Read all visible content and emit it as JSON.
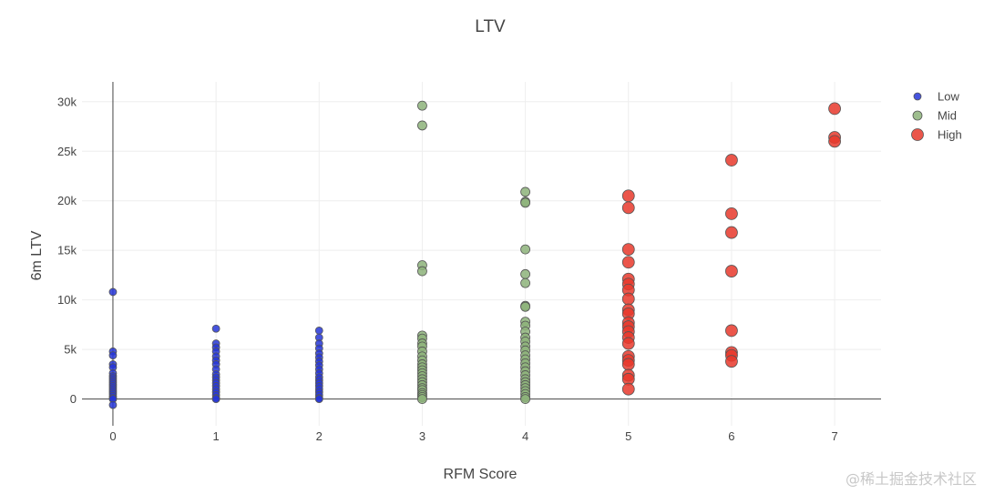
{
  "chart_data": {
    "type": "scatter",
    "title": "LTV",
    "xlabel": "RFM Score",
    "ylabel": "6m LTV",
    "xlim": [
      -0.3,
      7.45
    ],
    "ylim": [
      -2700,
      32000
    ],
    "xticks": [
      0,
      1,
      2,
      3,
      4,
      5,
      6,
      7
    ],
    "xticklabels": [
      "0",
      "1",
      "2",
      "3",
      "4",
      "5",
      "6",
      "7"
    ],
    "yticks": [
      0,
      5000,
      10000,
      15000,
      20000,
      25000,
      30000
    ],
    "yticklabels": [
      "0",
      "5k",
      "10k",
      "15k",
      "20k",
      "25k",
      "30k"
    ],
    "grid": true,
    "legend_position": "top-right",
    "series": [
      {
        "name": "Low",
        "color": "#2636d8",
        "marker_size": 8,
        "points": [
          [
            0,
            10800
          ],
          [
            0,
            4800
          ],
          [
            0,
            4400
          ],
          [
            0,
            3500
          ],
          [
            0,
            3200
          ],
          [
            0,
            2600
          ],
          [
            0,
            2300
          ],
          [
            0,
            2100
          ],
          [
            0,
            1900
          ],
          [
            0,
            1700
          ],
          [
            0,
            1500
          ],
          [
            0,
            1300
          ],
          [
            0,
            1100
          ],
          [
            0,
            900
          ],
          [
            0,
            700
          ],
          [
            0,
            500
          ],
          [
            0,
            300
          ],
          [
            0,
            100
          ],
          [
            0,
            0
          ],
          [
            0,
            -600
          ],
          [
            1,
            7100
          ],
          [
            1,
            5600
          ],
          [
            1,
            5200
          ],
          [
            1,
            4800
          ],
          [
            1,
            4300
          ],
          [
            1,
            3900
          ],
          [
            1,
            3500
          ],
          [
            1,
            3000
          ],
          [
            1,
            2500
          ],
          [
            1,
            2200
          ],
          [
            1,
            1900
          ],
          [
            1,
            1600
          ],
          [
            1,
            1300
          ],
          [
            1,
            1000
          ],
          [
            1,
            700
          ],
          [
            1,
            400
          ],
          [
            1,
            100
          ],
          [
            1,
            0
          ],
          [
            2,
            6900
          ],
          [
            2,
            6200
          ],
          [
            2,
            5600
          ],
          [
            2,
            5100
          ],
          [
            2,
            4600
          ],
          [
            2,
            4200
          ],
          [
            2,
            3800
          ],
          [
            2,
            3400
          ],
          [
            2,
            3000
          ],
          [
            2,
            2600
          ],
          [
            2,
            2200
          ],
          [
            2,
            1900
          ],
          [
            2,
            1600
          ],
          [
            2,
            1300
          ],
          [
            2,
            1000
          ],
          [
            2,
            700
          ],
          [
            2,
            400
          ],
          [
            2,
            100
          ],
          [
            2,
            0
          ]
        ]
      },
      {
        "name": "Mid",
        "color": "#8db37a",
        "marker_size": 10,
        "points": [
          [
            3,
            29600
          ],
          [
            3,
            27600
          ],
          [
            3,
            13500
          ],
          [
            3,
            12900
          ],
          [
            3,
            6400
          ],
          [
            3,
            6100
          ],
          [
            3,
            5600
          ],
          [
            3,
            5300
          ],
          [
            3,
            4800
          ],
          [
            3,
            4300
          ],
          [
            3,
            3900
          ],
          [
            3,
            3500
          ],
          [
            3,
            3200
          ],
          [
            3,
            2900
          ],
          [
            3,
            2600
          ],
          [
            3,
            2300
          ],
          [
            3,
            2000
          ],
          [
            3,
            1700
          ],
          [
            3,
            1400
          ],
          [
            3,
            1100
          ],
          [
            3,
            900
          ],
          [
            3,
            600
          ],
          [
            3,
            400
          ],
          [
            3,
            200
          ],
          [
            3,
            0
          ],
          [
            4,
            20900
          ],
          [
            4,
            19900
          ],
          [
            4,
            19800
          ],
          [
            4,
            15100
          ],
          [
            4,
            12600
          ],
          [
            4,
            11700
          ],
          [
            4,
            9400
          ],
          [
            4,
            9300
          ],
          [
            4,
            7800
          ],
          [
            4,
            7400
          ],
          [
            4,
            6800
          ],
          [
            4,
            6200
          ],
          [
            4,
            5800
          ],
          [
            4,
            5300
          ],
          [
            4,
            4900
          ],
          [
            4,
            4400
          ],
          [
            4,
            4000
          ],
          [
            4,
            3600
          ],
          [
            4,
            3200
          ],
          [
            4,
            2800
          ],
          [
            4,
            2400
          ],
          [
            4,
            2000
          ],
          [
            4,
            1700
          ],
          [
            4,
            1400
          ],
          [
            4,
            1100
          ],
          [
            4,
            800
          ],
          [
            4,
            500
          ],
          [
            4,
            200
          ],
          [
            4,
            0
          ]
        ]
      },
      {
        "name": "High",
        "color": "#e8382b",
        "marker_size": 13,
        "points": [
          [
            5,
            20500
          ],
          [
            5,
            19300
          ],
          [
            5,
            15100
          ],
          [
            5,
            13800
          ],
          [
            5,
            12100
          ],
          [
            5,
            11600
          ],
          [
            5,
            11000
          ],
          [
            5,
            10100
          ],
          [
            5,
            9000
          ],
          [
            5,
            8600
          ],
          [
            5,
            7700
          ],
          [
            5,
            7300
          ],
          [
            5,
            6800
          ],
          [
            5,
            6200
          ],
          [
            5,
            5600
          ],
          [
            5,
            4300
          ],
          [
            5,
            3900
          ],
          [
            5,
            3500
          ],
          [
            5,
            2400
          ],
          [
            5,
            2000
          ],
          [
            5,
            1000
          ],
          [
            6,
            24100
          ],
          [
            6,
            18700
          ],
          [
            6,
            16800
          ],
          [
            6,
            12900
          ],
          [
            6,
            6900
          ],
          [
            6,
            4700
          ],
          [
            6,
            4400
          ],
          [
            6,
            3800
          ],
          [
            7,
            29300
          ],
          [
            7,
            26400
          ],
          [
            7,
            26000
          ]
        ]
      }
    ]
  },
  "watermark": "@稀土掘金技术社区"
}
